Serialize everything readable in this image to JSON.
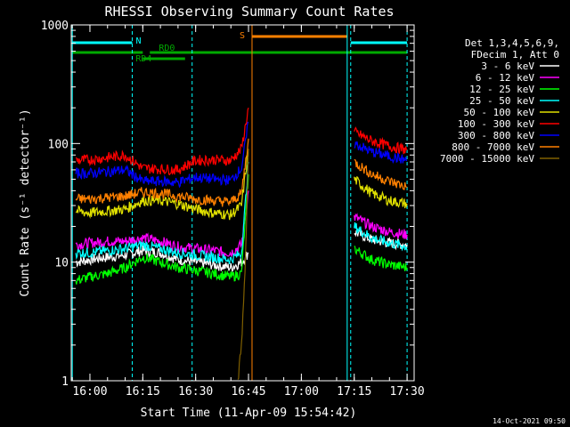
{
  "chart_data": {
    "type": "line",
    "title": "RHESSI Observing Summary Count Rates",
    "xlabel": "Start Time (11-Apr-09 15:54:42)",
    "ylabel": "Count Rate (s⁻¹ detector⁻¹)",
    "yscale": "log",
    "xlim": [
      "15:54:42",
      "17:32:00"
    ],
    "ylim": [
      1,
      1000
    ],
    "x_ticks": [
      "16:00",
      "16:15",
      "16:30",
      "16:45",
      "17:00",
      "17:15",
      "17:30"
    ],
    "y_ticks": [
      "1",
      "10",
      "100",
      "1000"
    ],
    "legend_header": [
      "Det 1,3,4,5,6,9,",
      "FDecim 1, Att 0"
    ],
    "legend_position": "right",
    "timestamp": "14-Oct-2021 09:50",
    "flags": [
      {
        "name": "N",
        "color": "#00ffff",
        "intervals": [
          [
            "15:55",
            "16:12"
          ],
          [
            "17:14",
            "17:30"
          ]
        ]
      },
      {
        "name": "RD0",
        "color": "#00aa00",
        "intervals": [
          [
            "15:55",
            "16:15"
          ],
          [
            "16:17",
            "17:30"
          ]
        ]
      },
      {
        "name": "RD4",
        "color": "#00aa00",
        "intervals": [
          [
            "16:15",
            "16:27"
          ]
        ]
      },
      {
        "name": "S",
        "color": "#ff8000",
        "intervals": [
          [
            "16:46",
            "17:13"
          ]
        ]
      }
    ],
    "vertical_markers": [
      {
        "time": "15:55",
        "color": "#00ffff",
        "style": "solid"
      },
      {
        "time": "16:12",
        "color": "#00ffff",
        "style": "dashed"
      },
      {
        "time": "16:29",
        "color": "#00ffff",
        "style": "dashed"
      },
      {
        "time": "16:46",
        "color": "#ff8000",
        "style": "solid"
      },
      {
        "time": "17:13",
        "color": "#00ffff",
        "style": "solid"
      },
      {
        "time": "17:14",
        "color": "#00ffff",
        "style": "dashed"
      },
      {
        "time": "17:30",
        "color": "#00ffff",
        "style": "dashed"
      }
    ],
    "series": [
      {
        "name": "3 - 6 keV",
        "color": "#ffffff",
        "segments": [
          {
            "x": [
              "15:56",
              "16:00",
              "16:05",
              "16:10",
              "16:15",
              "16:20",
              "16:25",
              "16:30",
              "16:35",
              "16:40",
              "16:43",
              "16:45"
            ],
            "y": [
              10,
              10.5,
              11,
              11.5,
              12.5,
              12,
              10.5,
              10,
              9.5,
              9,
              10,
              12
            ]
          },
          {
            "x": [
              "17:15",
              "17:20",
              "17:25",
              "17:30"
            ],
            "y": [
              18,
              15.5,
              14.5,
              14
            ]
          }
        ]
      },
      {
        "name": "6 - 12 keV",
        "color": "#ff00ff",
        "segments": [
          {
            "x": [
              "15:56",
              "16:00",
              "16:05",
              "16:10",
              "16:15",
              "16:20",
              "16:25",
              "16:30",
              "16:35",
              "16:40",
              "16:43",
              "16:45"
            ],
            "y": [
              14,
              14.5,
              15,
              15,
              16,
              15,
              13.5,
              13,
              12.5,
              12,
              14,
              40
            ]
          },
          {
            "x": [
              "17:15",
              "17:20",
              "17:25",
              "17:30"
            ],
            "y": [
              24,
              20,
              18,
              17
            ]
          }
        ]
      },
      {
        "name": "12 - 25 keV",
        "color": "#00ff00",
        "segments": [
          {
            "x": [
              "15:56",
              "16:00",
              "16:05",
              "16:10",
              "16:15",
              "16:20",
              "16:25",
              "16:30",
              "16:35",
              "16:40",
              "16:43",
              "16:45"
            ],
            "y": [
              7,
              7.5,
              8,
              9,
              11,
              10,
              9,
              8.5,
              8,
              7.5,
              8,
              55
            ]
          },
          {
            "x": [
              "17:15",
              "17:20",
              "17:25",
              "17:30"
            ],
            "y": [
              13,
              10.5,
              9.5,
              9
            ]
          }
        ]
      },
      {
        "name": "25 - 50 keV",
        "color": "#00ffff",
        "segments": [
          {
            "x": [
              "15:56",
              "16:00",
              "16:05",
              "16:10",
              "16:15",
              "16:20",
              "16:25",
              "16:30",
              "16:35",
              "16:40",
              "16:43",
              "16:45"
            ],
            "y": [
              12,
              12,
              12.5,
              13,
              14,
              13,
              12,
              11.5,
              11,
              10.5,
              12,
              70
            ]
          },
          {
            "x": [
              "17:15",
              "17:20",
              "17:25",
              "17:30"
            ],
            "y": [
              20,
              16,
              14.5,
              13.5
            ]
          }
        ]
      },
      {
        "name": "50 - 100 keV",
        "color": "#e0e000",
        "segments": [
          {
            "x": [
              "15:56",
              "16:00",
              "16:05",
              "16:10",
              "16:15",
              "16:20",
              "16:25",
              "16:30",
              "16:35",
              "16:40",
              "16:43",
              "16:45"
            ],
            "y": [
              27,
              26,
              27,
              28,
              33,
              33,
              31,
              28,
              26,
              25,
              30,
              90
            ]
          },
          {
            "x": [
              "17:15",
              "17:20",
              "17:25",
              "17:30"
            ],
            "y": [
              50,
              38,
              33,
              31
            ]
          }
        ]
      },
      {
        "name": "100 - 300 keV",
        "color": "#ff0000",
        "segments": [
          {
            "x": [
              "15:56",
              "16:00",
              "16:05",
              "16:10",
              "16:15",
              "16:20",
              "16:25",
              "16:30",
              "16:35",
              "16:40",
              "16:43",
              "16:45"
            ],
            "y": [
              72,
              73,
              76,
              80,
              62,
              61,
              60,
              72,
              73,
              72,
              90,
              200
            ]
          },
          {
            "x": [
              "17:15",
              "17:20",
              "17:25",
              "17:30"
            ],
            "y": [
              125,
              105,
              95,
              88
            ]
          }
        ]
      },
      {
        "name": "300 - 800 keV",
        "color": "#0000ff",
        "segments": [
          {
            "x": [
              "15:56",
              "16:00",
              "16:05",
              "16:10",
              "16:15",
              "16:20",
              "16:25",
              "16:30",
              "16:35",
              "16:40",
              "16:43",
              "16:45"
            ],
            "y": [
              56,
              56,
              58,
              60,
              48,
              48,
              47,
              52,
              50,
              49,
              62,
              150
            ]
          },
          {
            "x": [
              "17:15",
              "17:20",
              "17:25",
              "17:30"
            ],
            "y": [
              100,
              85,
              78,
              72
            ]
          }
        ]
      },
      {
        "name": "800 - 7000 keV",
        "color": "#ff8000",
        "segments": [
          {
            "x": [
              "15:56",
              "16:00",
              "16:05",
              "16:10",
              "16:15",
              "16:20",
              "16:25",
              "16:30",
              "16:35",
              "16:40",
              "16:43",
              "16:45"
            ],
            "y": [
              34,
              34,
              35,
              36,
              39,
              38,
              36,
              34,
              33,
              32,
              38,
              110
            ]
          },
          {
            "x": [
              "17:15",
              "17:20",
              "17:25",
              "17:30"
            ],
            "y": [
              70,
              55,
              48,
              43
            ]
          }
        ]
      },
      {
        "name": "7000 - 15000 keV",
        "color": "#806000",
        "segments": [
          {
            "x": [
              "16:42",
              "16:43",
              "16:44",
              "16:45"
            ],
            "y": [
              1,
              2,
              8,
              90
            ]
          }
        ]
      }
    ]
  }
}
